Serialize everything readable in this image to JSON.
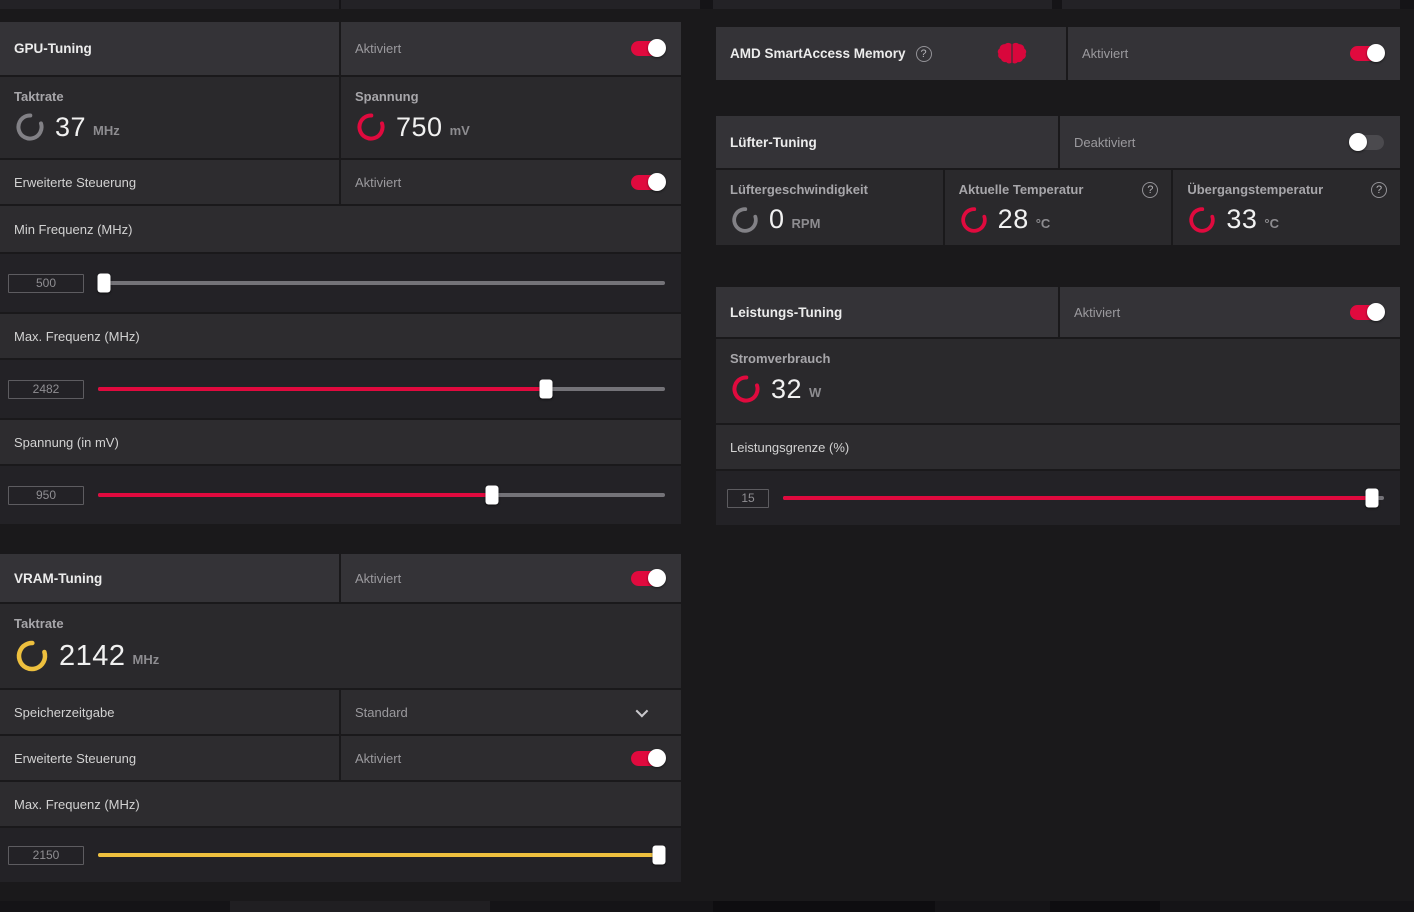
{
  "colors": {
    "accent_red": "#e00a3e",
    "accent_yellow": "#eec03e"
  },
  "gpu_tuning": {
    "title": "GPU-Tuning",
    "status": "Aktiviert",
    "clock": {
      "label": "Taktrate",
      "value": "37",
      "unit": "MHz"
    },
    "voltage_gauge": {
      "label": "Spannung",
      "value": "750",
      "unit": "mV"
    },
    "advanced": {
      "label": "Erweiterte Steuerung",
      "status": "Aktiviert"
    },
    "min_freq": {
      "label": "Min Frequenz (MHz)",
      "value": "500",
      "percent": 1
    },
    "max_freq": {
      "label": "Max. Frequenz (MHz)",
      "value": "2482",
      "percent": 79
    },
    "voltage_slider": {
      "label": "Spannung (in mV)",
      "value": "950",
      "percent": 69.5
    }
  },
  "vram_tuning": {
    "title": "VRAM-Tuning",
    "status": "Aktiviert",
    "clock": {
      "label": "Taktrate",
      "value": "2142",
      "unit": "MHz"
    },
    "memory_timing": {
      "label": "Speicherzeitgabe",
      "value": "Standard"
    },
    "advanced": {
      "label": "Erweiterte Steuerung",
      "status": "Aktiviert"
    },
    "max_freq": {
      "label": "Max. Frequenz (MHz)",
      "value": "2150",
      "percent": 99
    }
  },
  "smart_access_memory": {
    "title": "AMD SmartAccess Memory",
    "status": "Aktiviert",
    "help_icon": "?"
  },
  "fan_tuning": {
    "title": "Lüfter-Tuning",
    "status": "Deaktiviert",
    "fan_speed": {
      "label": "Lüftergeschwindigkeit",
      "value": "0",
      "unit": "RPM"
    },
    "current_temp": {
      "label": "Aktuelle Temperatur",
      "value": "28",
      "unit": "°C",
      "help_icon": "?"
    },
    "junction_temp": {
      "label": "Übergangstemperatur",
      "value": "33",
      "unit": "°C",
      "help_icon": "?"
    }
  },
  "power_tuning": {
    "title": "Leistungs-Tuning",
    "status": "Aktiviert",
    "consumption": {
      "label": "Stromverbrauch",
      "value": "32",
      "unit": "W"
    },
    "power_limit": {
      "label": "Leistungsgrenze (%)",
      "value": "15",
      "percent": 98
    }
  }
}
